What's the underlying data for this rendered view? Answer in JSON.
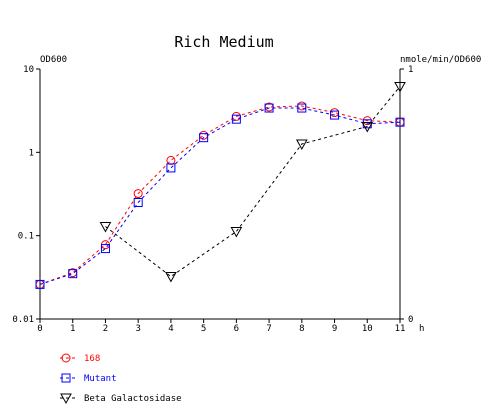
{
  "chart_data": {
    "type": "line",
    "title": "Rich Medium",
    "xlabel": "h",
    "ylabel_left": "OD600",
    "ylabel_right": "nmole/min/OD600",
    "x": [
      0,
      1,
      2,
      3,
      4,
      5,
      6,
      7,
      8,
      9,
      10,
      11
    ],
    "x_tick_labels": [
      "0",
      "1",
      "2",
      "3",
      "4",
      "5",
      "6",
      "7",
      "8",
      "9",
      "10",
      "11"
    ],
    "xlim": [
      0,
      11
    ],
    "y_left_scale": "log",
    "y_left_lim": [
      0.01,
      10
    ],
    "y_left_tick_labels": [
      "10",
      "1",
      "0.1",
      "0.01"
    ],
    "y_right_lim": [
      0,
      1
    ],
    "y_right_tick_labels": [
      "1",
      "0"
    ],
    "grid": false,
    "legend_placement": "bottom-left",
    "series": [
      {
        "name": "168",
        "axis": "left",
        "color": "#ff0000",
        "marker": "circle",
        "x": [
          0,
          1,
          2,
          3,
          4,
          5,
          6,
          7,
          8,
          9,
          10,
          11
        ],
        "values": [
          0.026,
          0.036,
          0.078,
          0.32,
          0.8,
          1.6,
          2.7,
          3.5,
          3.6,
          3.0,
          2.4,
          2.3
        ]
      },
      {
        "name": "Mutant",
        "axis": "left",
        "color": "#0000ff",
        "marker": "square",
        "x": [
          0,
          1,
          2,
          3,
          4,
          5,
          6,
          7,
          8,
          9,
          10,
          11
        ],
        "values": [
          0.026,
          0.035,
          0.07,
          0.25,
          0.65,
          1.5,
          2.5,
          3.4,
          3.4,
          2.8,
          2.2,
          2.3
        ]
      },
      {
        "name": "Beta Galactosidase",
        "axis": "right",
        "color": "#000000",
        "marker": "triangle-down",
        "x": [
          2,
          4,
          6,
          8,
          10,
          11
        ],
        "values": [
          0.37,
          0.17,
          0.35,
          0.7,
          0.77,
          0.93
        ]
      }
    ]
  }
}
